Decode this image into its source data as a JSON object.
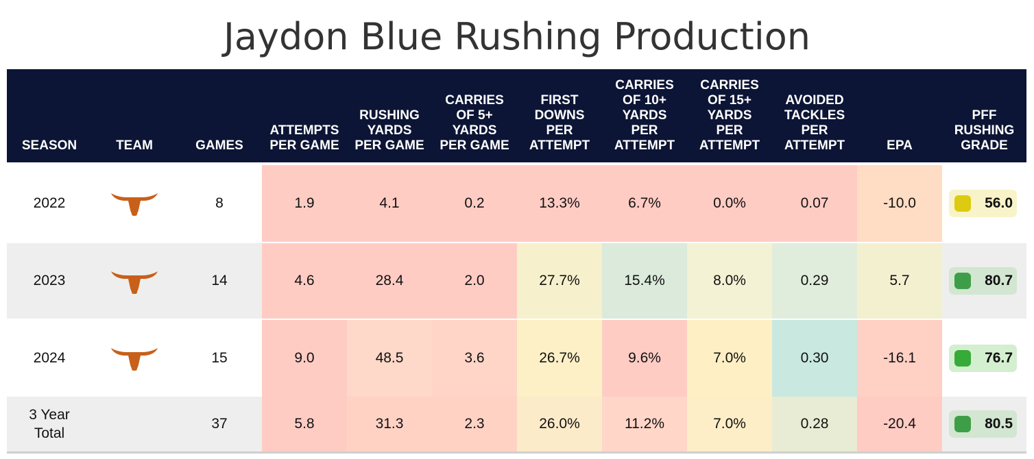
{
  "title": "Jaydon Blue Rushing Production",
  "chart_data": {
    "type": "table",
    "title": "Jaydon Blue Rushing Production",
    "columns": [
      "SEASON",
      "TEAM",
      "GAMES",
      "ATTEMPTS PER GAME",
      "RUSHING YARDS PER GAME",
      "CARRIES OF 5+ YARDS PER GAME",
      "FIRST DOWNS PER ATTEMPT",
      "CARRIES OF 10+ YARDS PER ATTEMPT",
      "CARRIES OF 15+ YARDS PER ATTEMPT",
      "AVOIDED TACKLES PER ATTEMPT",
      "EPA",
      "PFF RUSHING GRADE"
    ],
    "header_lines": [
      [
        "SEASON"
      ],
      [
        "TEAM"
      ],
      [
        "GAMES"
      ],
      [
        "ATTEMPTS",
        "PER GAME"
      ],
      [
        "RUSHING",
        "YARDS",
        "PER GAME"
      ],
      [
        "CARRIES",
        "OF 5+",
        "YARDS",
        "PER GAME"
      ],
      [
        "FIRST",
        "DOWNS",
        "PER",
        "ATTEMPT"
      ],
      [
        "CARRIES",
        "OF 10+",
        "YARDS",
        "PER",
        "ATTEMPT"
      ],
      [
        "CARRIES",
        "OF 15+",
        "YARDS",
        "PER",
        "ATTEMPT"
      ],
      [
        "AVOIDED",
        "TACKLES",
        "PER",
        "ATTEMPT"
      ],
      [
        "EPA"
      ],
      [
        "PFF",
        "RUSHING",
        "GRADE"
      ]
    ],
    "rows": [
      {
        "season": "2022",
        "team_logo": "texas-longhorn-icon",
        "games": "8",
        "values": [
          "1.9",
          "4.1",
          "0.2",
          "13.3%",
          "6.7%",
          "0.0%",
          "0.07",
          "-10.0"
        ],
        "colors": [
          "#ffccc4",
          "#ffccc4",
          "#ffccc4",
          "#ffccc4",
          "#ffccc4",
          "#ffccc4",
          "#ffccc4",
          "#ffdcc4"
        ],
        "grade": "56.0",
        "grade_bg": "#f8f3c8",
        "grade_dot": "#dccb10"
      },
      {
        "season": "2023",
        "team_logo": "texas-longhorn-icon",
        "games": "14",
        "values": [
          "4.6",
          "28.4",
          "2.0",
          "27.7%",
          "15.4%",
          "8.0%",
          "0.29",
          "5.7"
        ],
        "colors": [
          "#ffccc4",
          "#ffccc4",
          "#ffccc4",
          "#f6f1cc",
          "#dbeadb",
          "#f3f2d4",
          "#e0ecdc",
          "#f3f0d0"
        ],
        "grade": "80.7",
        "grade_bg": "#d2e6d2",
        "grade_dot": "#3e9e48"
      },
      {
        "season": "2024",
        "team_logo": "texas-longhorn-icon",
        "games": "15",
        "values": [
          "9.0",
          "48.5",
          "3.6",
          "26.7%",
          "9.6%",
          "7.0%",
          "0.30",
          "-16.1"
        ],
        "colors": [
          "#ffccc4",
          "#fed8c8",
          "#fed5c6",
          "#fef0c6",
          "#ffccc4",
          "#fef0c4",
          "#c9e8e0",
          "#ffd0c4"
        ],
        "grade": "76.7",
        "grade_bg": "#d4eed0",
        "grade_dot": "#36ab37"
      },
      {
        "season": "3 Year Total",
        "team_logo": "",
        "games": "37",
        "values": [
          "5.8",
          "31.3",
          "2.3",
          "26.0%",
          "11.2%",
          "7.0%",
          "0.28",
          "-20.4"
        ],
        "colors": [
          "#ffccc4",
          "#ffd2c4",
          "#ffd2c4",
          "#fcebc8",
          "#ffd6c8",
          "#feeec8",
          "#e8ecd4",
          "#ffccc4"
        ],
        "grade": "80.5",
        "grade_bg": "#d2e6d2",
        "grade_dot": "#3e9e48"
      }
    ]
  }
}
